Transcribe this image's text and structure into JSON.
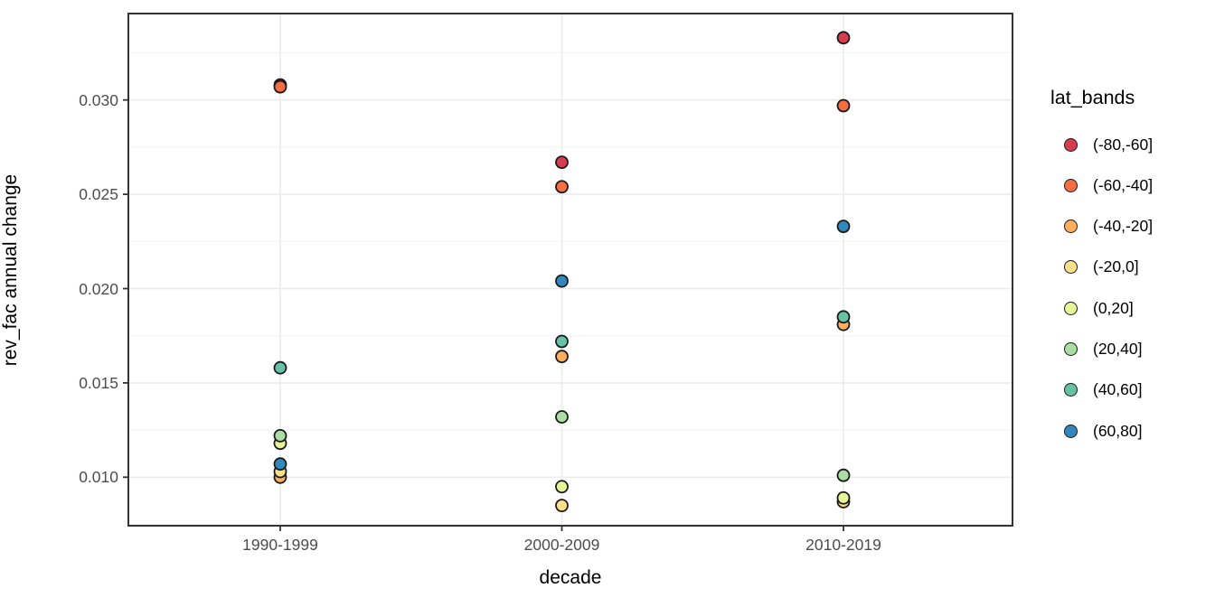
{
  "chart_data": {
    "type": "scatter",
    "title": "",
    "xlabel": "decade",
    "ylabel": "rev_fac annual change",
    "legend_title": "lat_bands",
    "legend_position": "right",
    "categories": [
      "1990-1999",
      "2000-2009",
      "2010-2019"
    ],
    "y_ticks": [
      {
        "value": 0.01,
        "label": "0.010"
      },
      {
        "value": 0.015,
        "label": "0.015"
      },
      {
        "value": 0.02,
        "label": "0.020"
      },
      {
        "value": 0.025,
        "label": "0.025"
      },
      {
        "value": 0.03,
        "label": "0.030"
      }
    ],
    "y_minor_gridlines": [
      0.0075,
      0.0125,
      0.0175,
      0.0225,
      0.0275,
      0.0325
    ],
    "ylim": [
      0.0074,
      0.0346
    ],
    "grid": {
      "on": true,
      "major_color": "#EBEBEB",
      "minor_color": "#F4F4F4"
    },
    "panel": {
      "background": "#FFFFFF",
      "border_color": "#333333"
    },
    "point_style": {
      "radius": 6.5,
      "stroke": "#1A1A1A",
      "stroke_width": 1.8
    },
    "series": [
      {
        "name": "(-80,-60]",
        "color": "#D53E4F",
        "values": [
          0.0308,
          0.0267,
          0.0333
        ]
      },
      {
        "name": "(-60,-40]",
        "color": "#F46D43",
        "values": [
          0.0307,
          0.0254,
          0.0297
        ]
      },
      {
        "name": "(-40,-20]",
        "color": "#FDAE61",
        "values": [
          0.01,
          0.0164,
          0.0181
        ]
      },
      {
        "name": "(-20,0]",
        "color": "#FEE08B",
        "values": [
          0.0103,
          0.0085,
          0.0087
        ]
      },
      {
        "name": "(0,20]",
        "color": "#E6F598",
        "values": [
          0.0118,
          0.0095,
          0.0089
        ]
      },
      {
        "name": "(20,40]",
        "color": "#ABDDA4",
        "values": [
          0.0122,
          0.0132,
          0.0101
        ]
      },
      {
        "name": "(40,60]",
        "color": "#66C2A5",
        "values": [
          0.0158,
          0.0172,
          0.0185
        ]
      },
      {
        "name": "(60,80]",
        "color": "#3288BD",
        "values": [
          0.0107,
          0.0204,
          0.0233
        ]
      }
    ]
  }
}
